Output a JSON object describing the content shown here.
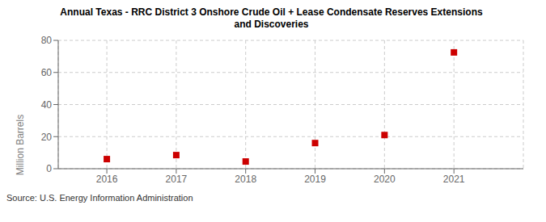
{
  "chart_data": {
    "type": "scatter",
    "title": "Annual Texas - RRC District 3 Onshore Crude Oil + Lease Condensate Reserves Extensions\nand Discoveries",
    "ylabel": "Million Barrels",
    "annotations": [
      "Source: U.S. Energy Information Administration"
    ],
    "x": [
      2016,
      2017,
      2018,
      2019,
      2020,
      2021
    ],
    "values": [
      6.0,
      8.5,
      4.5,
      16.0,
      21.0,
      72.5
    ],
    "color": "#cc0000",
    "marker": "square",
    "xlim": [
      2015.3,
      2022.0
    ],
    "xticks": [
      2016,
      2017,
      2018,
      2019,
      2020,
      2021
    ],
    "ylim": [
      0,
      80
    ],
    "yticks": [
      0,
      20,
      40,
      60,
      80
    ],
    "grid": true
  }
}
